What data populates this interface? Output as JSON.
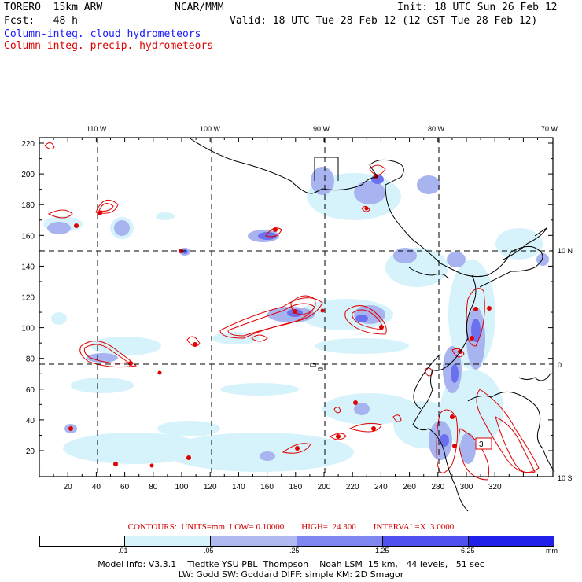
{
  "header": {
    "model": "TORERO  15km ARW",
    "org": "NCAR/MMM",
    "init": "Init: 18 UTC Sun 26 Feb 12",
    "fcst": "Fcst:   48 h",
    "valid": "Valid: 18 UTC Tue 28 Feb 12 (12 CST Tue 28 Feb 12)",
    "field1": "Column-integ. cloud hydrometeors",
    "field2": "Column-integ. precip. hydrometeors"
  },
  "colors": {
    "cloud_field": "#3333ff",
    "precip_field": "#e00000",
    "grid": "#000000"
  },
  "map": {
    "lon_labels": [
      "110 W",
      "100 W",
      "90 W",
      "80 W",
      "70 W"
    ],
    "lat_labels": [
      "10 N",
      "0",
      "10 S"
    ],
    "x_ticks": [
      "20",
      "40",
      "60",
      "80",
      "100",
      "120",
      "140",
      "160",
      "180",
      "200",
      "220",
      "240",
      "260",
      "280",
      "300",
      "320"
    ],
    "y_ticks": [
      "220",
      "200",
      "180",
      "160",
      "140",
      "120",
      "100",
      "80",
      "60",
      "40",
      "20"
    ],
    "inline_label": "3"
  },
  "contours_line": "CONTOURS:  UNITS=mm  LOW= 0.10000        HIGH=  24.300        INTERVAL=X  3.0000",
  "colorbar": {
    "labels": [
      ".01",
      ".05",
      ".25",
      "1.25",
      "6.25"
    ],
    "unit": "mm",
    "colors": [
      "#ffffff",
      "#d6f3fb",
      "#b0b8f0",
      "#7f86f0",
      "#5050f0",
      "#2020e8"
    ]
  },
  "footer": {
    "line1": "Model Info: V3.3.1    Tiedtke YSU PBL  Thompson    Noah LSM  15 km,   44 levels,   51 sec",
    "line2": "LW: Godd SW: Goddard DIFF: simple KM: 2D Smagor"
  }
}
